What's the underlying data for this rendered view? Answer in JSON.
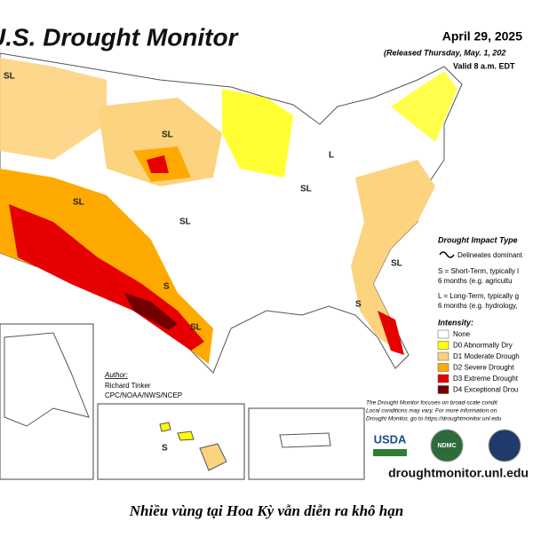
{
  "header": {
    "title": "U.S. Drought Monitor",
    "date": "April 29, 2025",
    "released": "(Released Thursday, May. 1, 202",
    "valid": "Valid 8 a.m. EDT"
  },
  "map_labels": [
    "SL",
    "SL",
    "L",
    "SL",
    "SL",
    "SL",
    "SL",
    "S",
    "S",
    "SL",
    "S"
  ],
  "legend": {
    "impact_title": "Drought Impact Type",
    "delineates": "Delineates dominant",
    "short_term": [
      "S = Short-Term, typically l",
      "6 months (e.g. agricultu"
    ],
    "long_term": [
      "L = Long-Term, typically g",
      "6 months (e.g. hydrology,"
    ],
    "intensity_title": "Intensity:",
    "items": [
      {
        "label": "None",
        "color": "#ffffff"
      },
      {
        "label": "D0 Abnormally Dry",
        "color": "#ffff00"
      },
      {
        "label": "D1 Moderate Drough",
        "color": "#fcd37f"
      },
      {
        "label": "D2 Severe Drought",
        "color": "#ffaa00"
      },
      {
        "label": "D3 Extreme Drought",
        "color": "#e60000"
      },
      {
        "label": "D4 Exceptional Drou",
        "color": "#730000"
      }
    ]
  },
  "author": {
    "heading": "Author:",
    "name": "Richard Tinker",
    "org": "CPC/NOAA/NWS/NCEP"
  },
  "notes": [
    "The Drought Monitor focuses on broad-scale condit",
    "Local conditions may vary. For more information on",
    "Drought Monitor, go to https://droughtmonitor.unl.edu"
  ],
  "logos": {
    "usda": "USDA",
    "ndmc": "NDMC"
  },
  "url": "droughtmonitor.unl.edu",
  "caption": "Nhiều vùng tại Hoa Kỳ vẫn diễn ra khô hạn"
}
